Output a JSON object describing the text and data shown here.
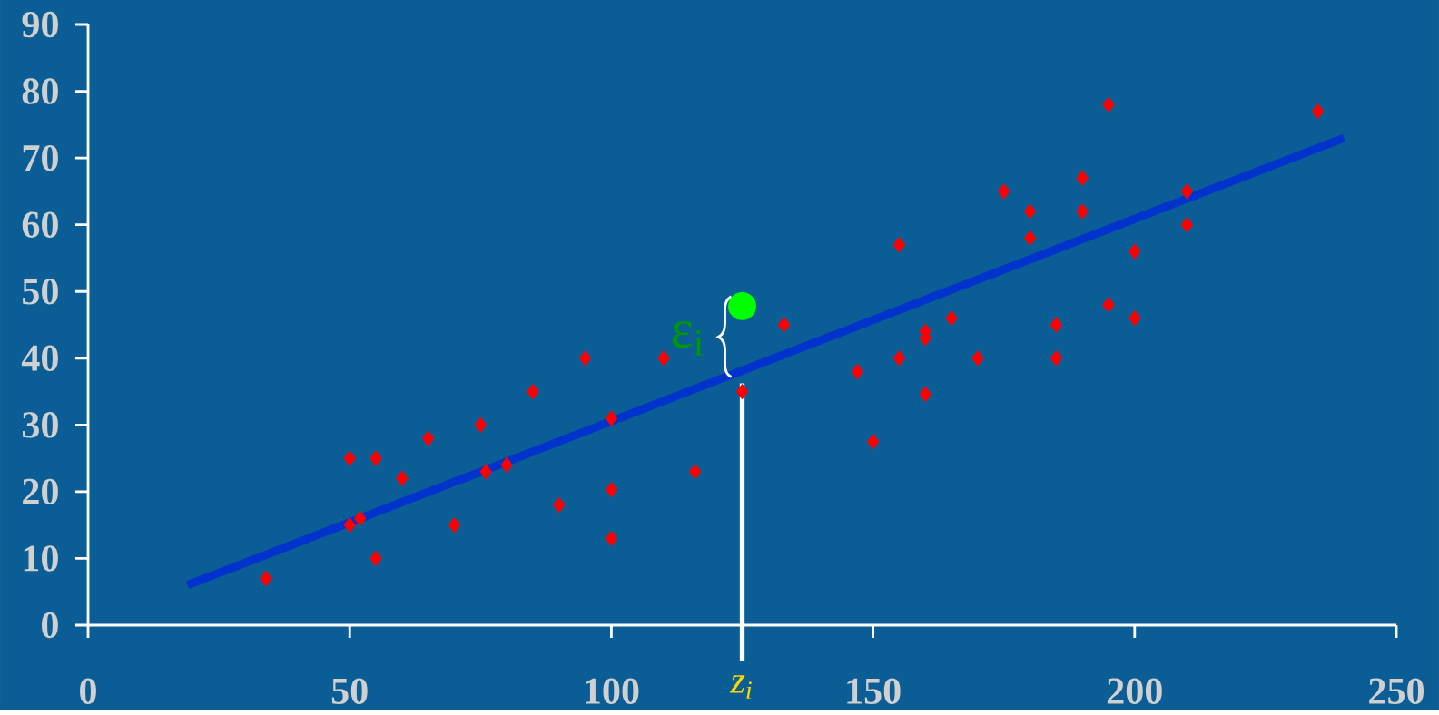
{
  "chart_data": {
    "type": "scatter",
    "xlim": [
      0,
      250
    ],
    "ylim": [
      0,
      90
    ],
    "xticks": [
      0,
      50,
      100,
      150,
      200,
      250
    ],
    "yticks": [
      0,
      10,
      20,
      30,
      40,
      50,
      60,
      70,
      80,
      90
    ],
    "series": [
      {
        "marker": "diamond",
        "color": "#ff0000",
        "x": [
          34,
          50,
          50,
          52,
          55,
          55,
          60,
          65,
          70,
          75,
          76,
          80,
          85,
          90,
          95,
          100,
          100,
          100,
          110,
          116,
          125,
          133,
          147,
          150,
          155,
          155,
          160,
          160,
          160,
          165,
          170,
          175,
          180,
          180,
          185,
          185,
          190,
          190,
          195,
          195,
          200,
          200,
          210,
          210,
          235
        ],
        "values": [
          7,
          25,
          15,
          16,
          25,
          10,
          22,
          28,
          15,
          30,
          23,
          24,
          35,
          18,
          40,
          31,
          20.3,
          13,
          40,
          23,
          35,
          45,
          38,
          27.5,
          57,
          40,
          44,
          43,
          34.6,
          46,
          40,
          65,
          62,
          58,
          45,
          40,
          67,
          62,
          78,
          48,
          56,
          46,
          65,
          60,
          77
        ]
      },
      {
        "type": "line",
        "color": "#0033cc",
        "x": [
          19,
          240
        ],
        "values": [
          6,
          73
        ]
      },
      {
        "type": "scatter",
        "marker": "circle",
        "color": "#00ff00",
        "x": [
          125
        ],
        "values": [
          47.8
        ]
      }
    ],
    "ref_lines": [
      {
        "axis": "x",
        "value": 125,
        "label": "z$_{i}$",
        "color": "#ffffff"
      }
    ],
    "annotations": [
      "ε$_{i}$"
    ]
  }
}
